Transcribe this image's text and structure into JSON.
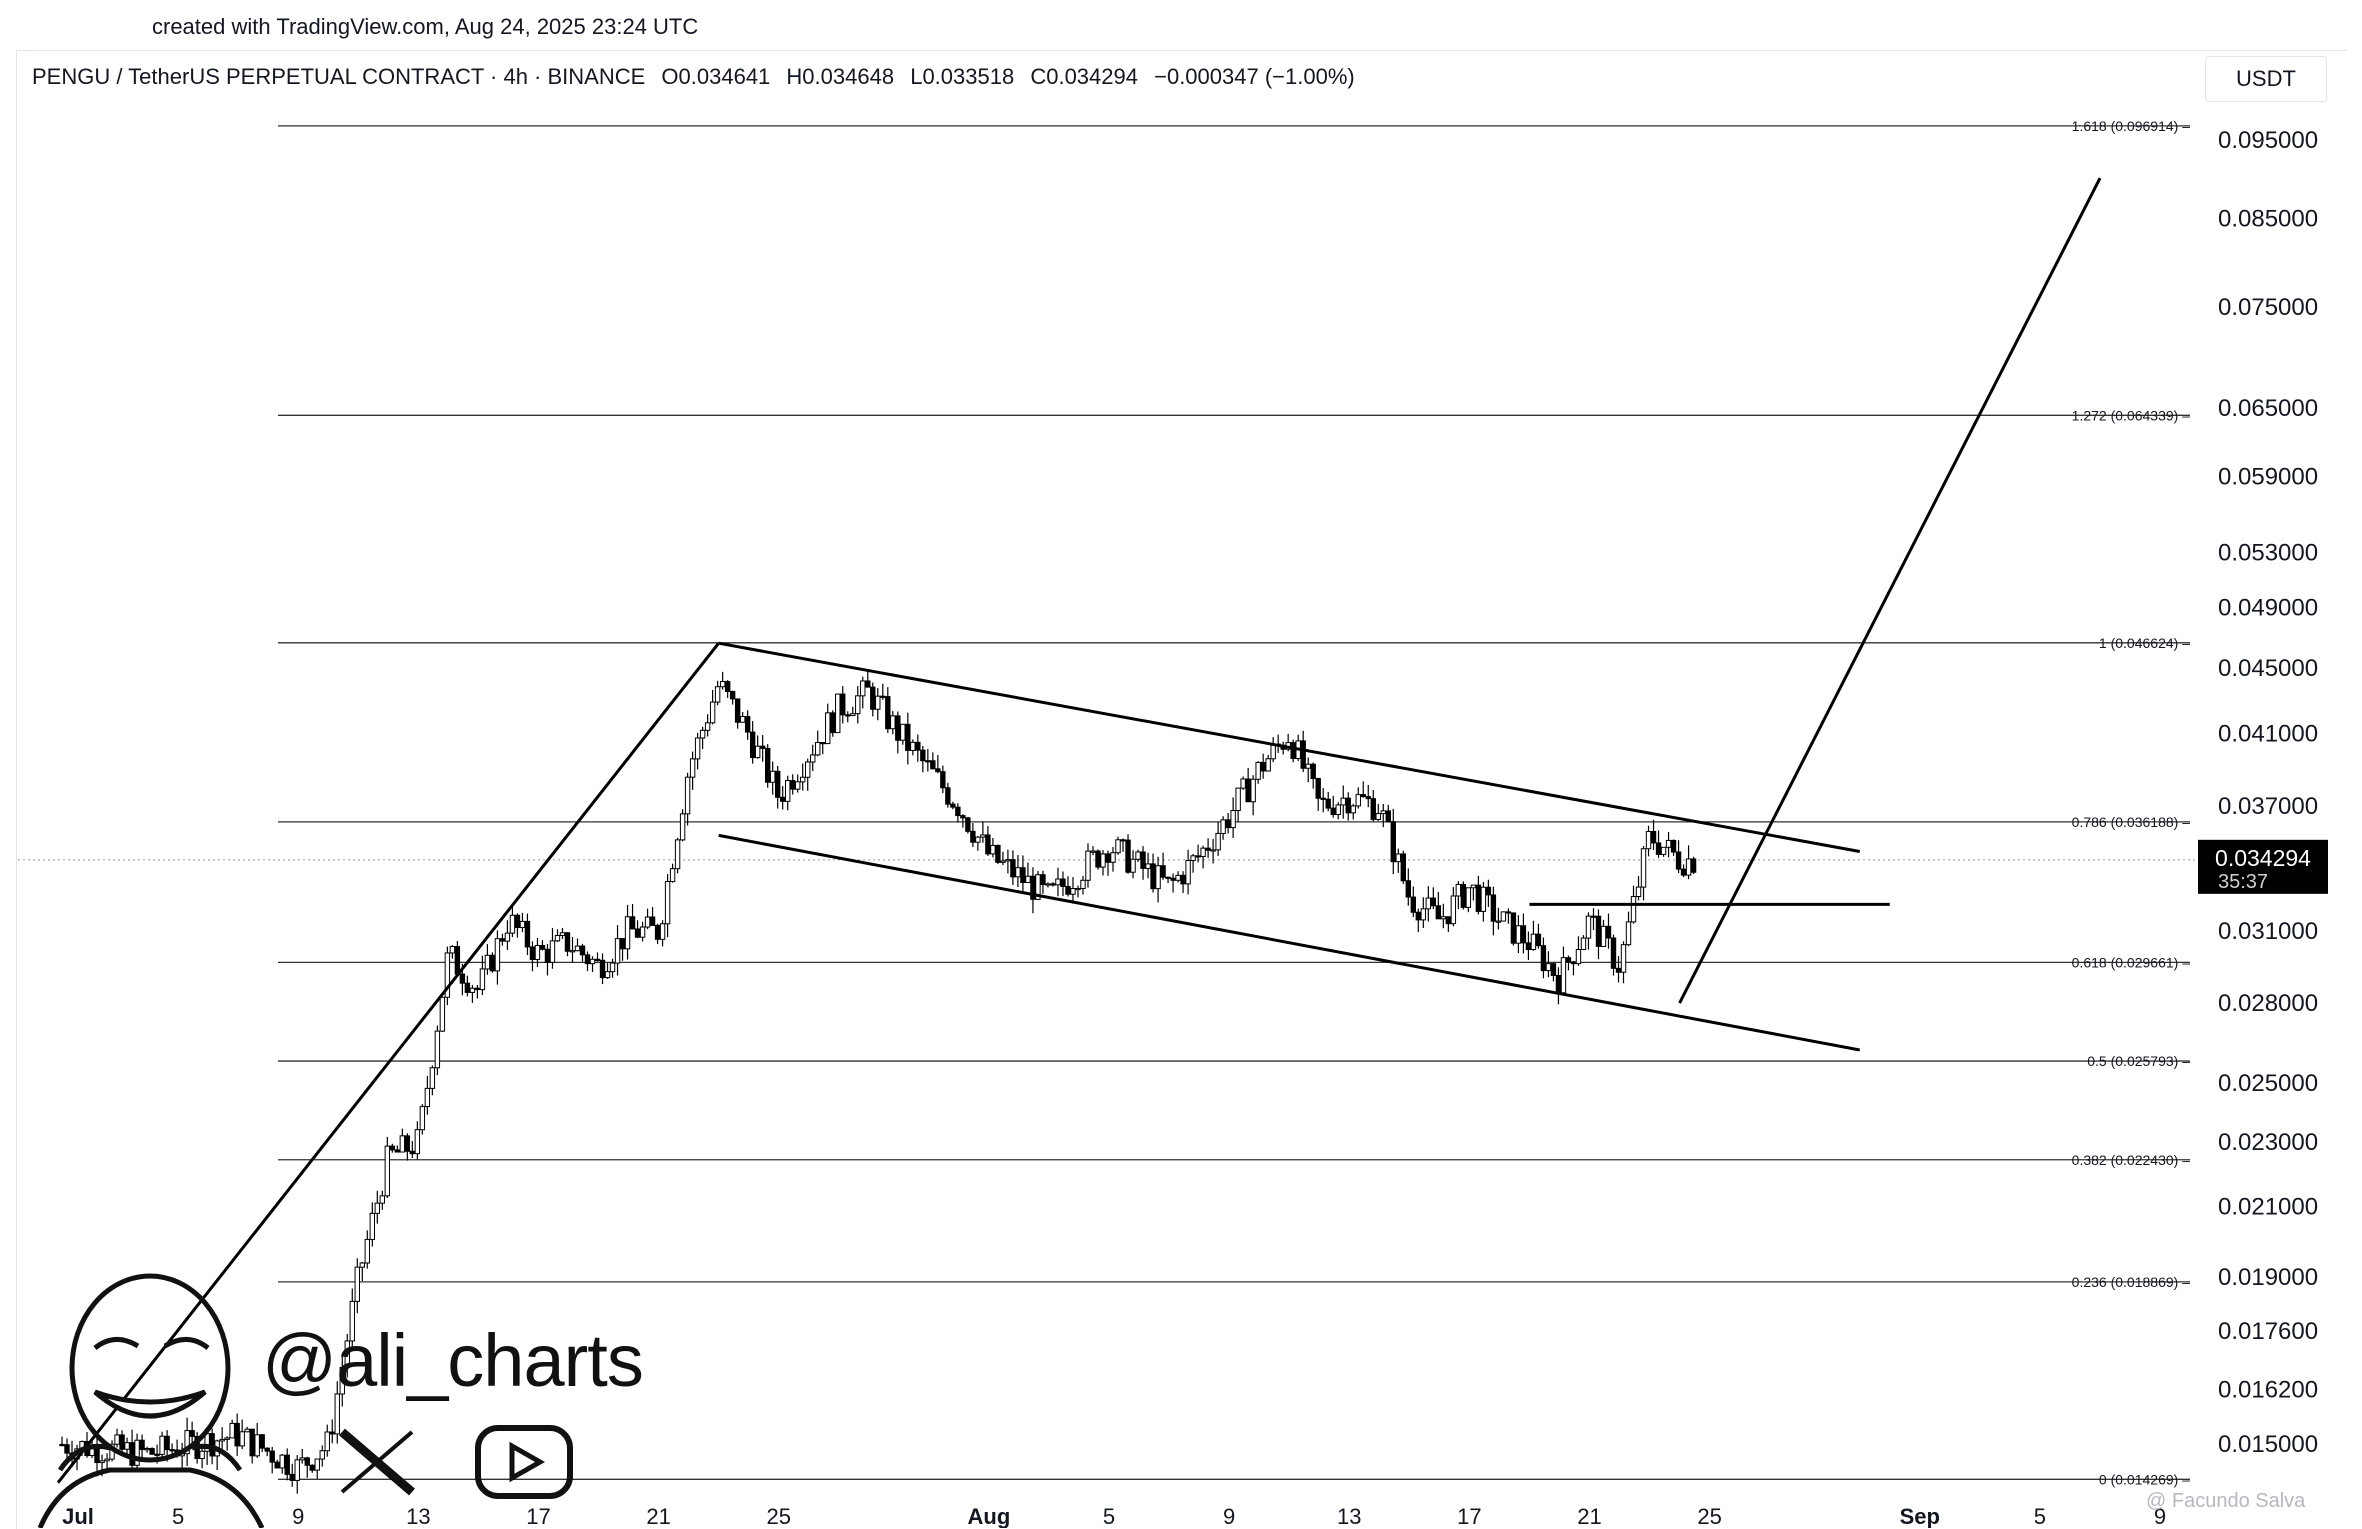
{
  "caption": "created with TradingView.com, Aug 24, 2025 23:24 UTC",
  "header": {
    "symbol": "PENGU / TetherUS PERPETUAL CONTRACT · 4h · BINANCE",
    "open": "O0.034641",
    "high": "H0.034648",
    "low": "L0.033518",
    "close": "C0.034294",
    "change": "−0.000347 (−1.00%)",
    "currency": "USDT"
  },
  "watermark": {
    "handle": "@ali_charts",
    "credit": "@ Facundo Salva"
  },
  "icons": [
    "portrait-icon",
    "x-logo-icon",
    "youtube-play-icon"
  ],
  "last_price": {
    "value": "0.034294",
    "countdown": "35:37",
    "bg": "#000000"
  },
  "chart_data": {
    "type": "candlestick",
    "interval": "4h",
    "y_scale": "log",
    "y_ticks": [
      "0.095000",
      "0.085000",
      "0.075000",
      "0.065000",
      "0.059000",
      "0.053000",
      "0.049000",
      "0.045000",
      "0.041000",
      "0.037000",
      "0.031000",
      "0.028000",
      "0.025000",
      "0.023000",
      "0.021000",
      "0.019000",
      "0.017600",
      "0.016200",
      "0.015000"
    ],
    "x_ticks": [
      "Jul",
      "5",
      "9",
      "13",
      "17",
      "21",
      "25",
      "Aug",
      "5",
      "9",
      "13",
      "17",
      "21",
      "25",
      "Sep",
      "5",
      "9"
    ],
    "fib_levels": [
      {
        "ratio": "1.618",
        "price": 0.096914,
        "label": "1.618 (0.096914)"
      },
      {
        "ratio": "1.272",
        "price": 0.064339,
        "label": "1.272 (0.064339)"
      },
      {
        "ratio": "1",
        "price": 0.046624,
        "label": "1 (0.046624)"
      },
      {
        "ratio": "0.786",
        "price": 0.036188,
        "label": "0.786 (0.036188)"
      },
      {
        "ratio": "0.618",
        "price": 0.029661,
        "label": "0.618 (0.029661)"
      },
      {
        "ratio": "0.5",
        "price": 0.025793,
        "label": "0.5 (0.025793)"
      },
      {
        "ratio": "0.382",
        "price": 0.02243,
        "label": "0.382 (0.022430)"
      },
      {
        "ratio": "0.236",
        "price": 0.018869,
        "label": "0.236 (0.018869)"
      },
      {
        "ratio": "0",
        "price": 0.014269,
        "label": "0 (0.014269)"
      }
    ],
    "price_path": [
      [
        "Jul 1",
        0.015
      ],
      [
        "Jul 4",
        0.0148
      ],
      [
        "Jul 7",
        0.0152
      ],
      [
        "Jul 9",
        0.0145
      ],
      [
        "Jul 10",
        0.015
      ],
      [
        "Jul 11",
        0.019
      ],
      [
        "Jul 12",
        0.0225
      ],
      [
        "Jul 13",
        0.023
      ],
      [
        "Jul 14",
        0.03
      ],
      [
        "Jul 15",
        0.0285
      ],
      [
        "Jul 16",
        0.0315
      ],
      [
        "Jul 17",
        0.03
      ],
      [
        "Jul 18",
        0.0305
      ],
      [
        "Jul 19",
        0.0295
      ],
      [
        "Jul 20",
        0.031
      ],
      [
        "Jul 21",
        0.031
      ],
      [
        "Jul 22",
        0.039
      ],
      [
        "Jul 23",
        0.044
      ],
      [
        "Jul 24",
        0.041
      ],
      [
        "Jul 25",
        0.0375
      ],
      [
        "Jul 27",
        0.0425
      ],
      [
        "Jul 28",
        0.0435
      ],
      [
        "Jul 29",
        0.041
      ],
      [
        "Jul 31",
        0.037
      ],
      [
        "Aug 1",
        0.0345
      ],
      [
        "Aug 2",
        0.0335
      ],
      [
        "Aug 3",
        0.0325
      ],
      [
        "Aug 5",
        0.035
      ],
      [
        "Aug 6",
        0.034
      ],
      [
        "Aug 7",
        0.033
      ],
      [
        "Aug 8",
        0.0345
      ],
      [
        "Aug 9",
        0.0365
      ],
      [
        "Aug 10",
        0.039
      ],
      [
        "Aug 11",
        0.041
      ],
      [
        "Aug 12",
        0.037
      ],
      [
        "Aug 13",
        0.0375
      ],
      [
        "Aug 14",
        0.037
      ],
      [
        "Aug 15",
        0.0325
      ],
      [
        "Aug 16",
        0.0315
      ],
      [
        "Aug 17",
        0.033
      ],
      [
        "Aug 18",
        0.0315
      ],
      [
        "Aug 19",
        0.0305
      ],
      [
        "Aug 20",
        0.029
      ],
      [
        "Aug 21",
        0.0315
      ],
      [
        "Aug 22",
        0.0295
      ],
      [
        "Aug 23",
        0.0355
      ],
      [
        "Aug 24",
        0.0343
      ]
    ],
    "trendlines": [
      {
        "name": "impulse",
        "from": [
          "Jul 1",
          0.0142
        ],
        "to": [
          "Jul 23",
          0.0466
        ]
      },
      {
        "name": "channel-upper",
        "from": [
          "Jul 23",
          0.0466
        ],
        "to": [
          "Aug 30",
          0.0347
        ]
      },
      {
        "name": "channel-lower",
        "from": [
          "Jul 23",
          0.0355
        ],
        "to": [
          "Aug 30",
          0.0262
        ]
      },
      {
        "name": "breakout-level",
        "from": [
          "Aug 19",
          0.0322
        ],
        "to": [
          "Aug 31",
          0.0322
        ]
      },
      {
        "name": "projection",
        "from": [
          "Aug 24",
          0.028
        ],
        "to": [
          "Sep 7",
          0.09
        ]
      }
    ],
    "current_price": 0.034294,
    "grid": false
  }
}
